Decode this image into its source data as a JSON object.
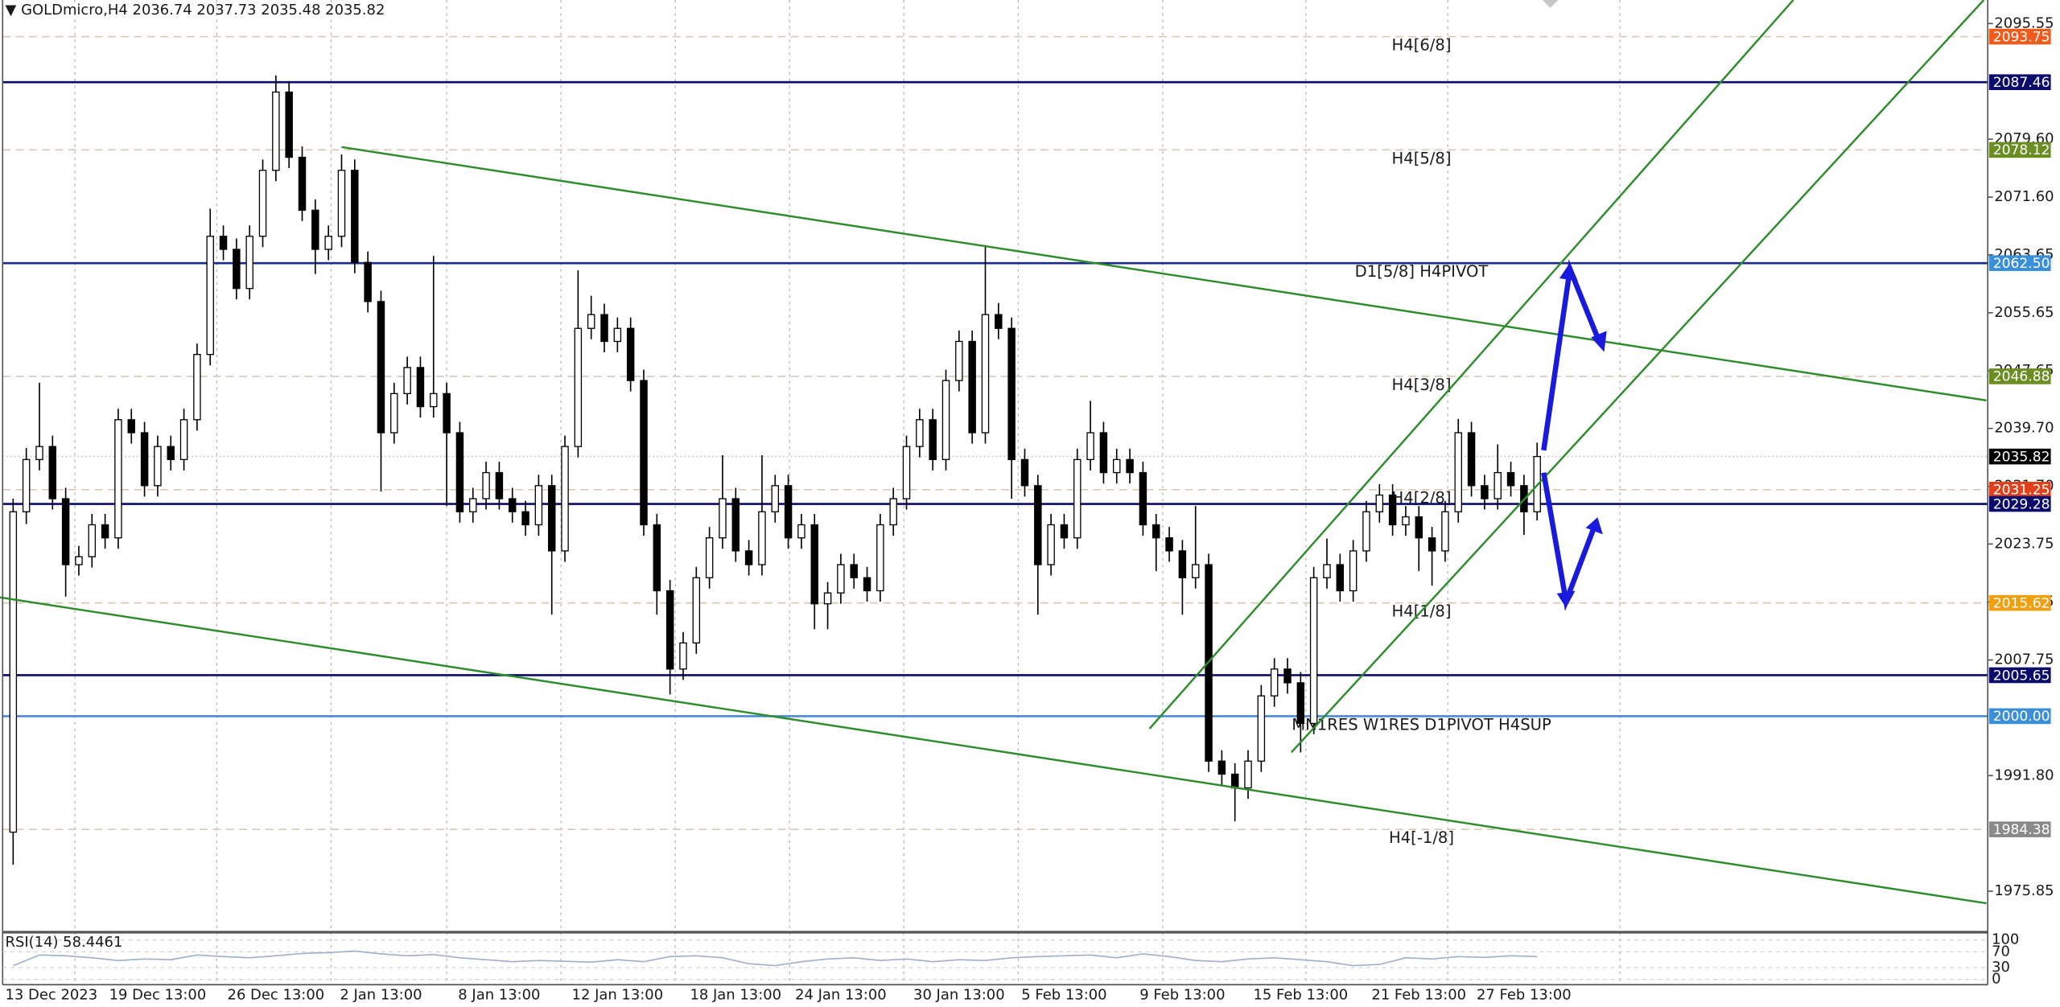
{
  "header": {
    "text": "GOLDmicro,H4  2036.74 2037.73 2035.48 2035.82"
  },
  "chart_data": {
    "type": "candlestick",
    "x": [
      "13 Dec 2023",
      null,
      null,
      null,
      null,
      null,
      null,
      null,
      null,
      null,
      null,
      "19 Dec 13:00",
      null,
      null,
      null,
      null,
      null,
      null,
      null,
      null,
      "26 Dec 13:00",
      null,
      null,
      null,
      null,
      null,
      null,
      null,
      "2 Jan 13:00",
      null,
      null,
      null,
      null,
      null,
      null,
      null,
      null,
      "8 Jan 13:00",
      null,
      null,
      null,
      null,
      null,
      null,
      null,
      null,
      "12 Jan 13:00",
      null,
      null,
      null,
      null,
      null,
      null,
      null,
      null,
      "18 Jan 13:00",
      null,
      null,
      null,
      null,
      null,
      null,
      null,
      "24 Jan 13:00",
      null,
      null,
      null,
      null,
      null,
      null,
      null,
      null,
      "30 Jan 13:00",
      null,
      null,
      null,
      null,
      null,
      null,
      null,
      "5 Feb 13:00",
      null,
      null,
      null,
      null,
      null,
      null,
      null,
      null,
      "9 Feb 13:00",
      null,
      null,
      null,
      null,
      null,
      null,
      null,
      null,
      "15 Feb 13:00",
      null,
      null,
      null,
      null,
      null,
      null,
      null,
      null,
      "21 Feb 13:00",
      null,
      null,
      null,
      null,
      null,
      null,
      null,
      "27 Feb 13:00",
      null
    ],
    "open": [
      1984.0,
      2028.2,
      2035.4,
      2037.2,
      2030.0,
      2020.9,
      2022.0,
      2026.4,
      2024.6,
      2040.9,
      2039.1,
      2031.8,
      2037.2,
      2035.4,
      2040.9,
      2049.9,
      2066.2,
      2064.4,
      2059.0,
      2066.2,
      2075.3,
      2086.1,
      2077.1,
      2069.8,
      2064.4,
      2066.2,
      2075.3,
      2062.6,
      2057.2,
      2039.1,
      2044.5,
      2048.1,
      2042.7,
      2044.5,
      2039.1,
      2028.2,
      2030.0,
      2033.6,
      2030.0,
      2028.2,
      2026.4,
      2031.8,
      2022.8,
      2037.2,
      2053.5,
      2055.4,
      2051.7,
      2053.5,
      2046.3,
      2026.4,
      2017.3,
      2006.5,
      2010.1,
      2019.1,
      2024.6,
      2030.0,
      2022.8,
      2020.9,
      2028.2,
      2031.8,
      2024.6,
      2026.4,
      2015.5,
      2017.0,
      2020.9,
      2019.1,
      2017.3,
      2026.4,
      2030.0,
      2037.2,
      2040.9,
      2035.4,
      2046.3,
      2051.7,
      2039.1,
      2055.4,
      2053.5,
      2035.4,
      2031.8,
      2020.9,
      2026.4,
      2024.6,
      2035.4,
      2039.1,
      2033.6,
      2035.4,
      2033.6,
      2026.4,
      2024.6,
      2022.8,
      2019.1,
      2020.9,
      1993.8,
      1992.0,
      1990.1,
      1993.8,
      2002.8,
      2006.5,
      2004.6,
      1999.0,
      2019.1,
      2020.9,
      2017.3,
      2022.8,
      2028.2,
      2030.5,
      2026.4,
      2027.5,
      2024.6,
      2022.8,
      2028.2,
      2039.1,
      2031.8,
      2030.0,
      2033.6,
      2031.8,
      2028.2
    ],
    "high": [
      2030.0,
      2037.0,
      2046.0,
      2038.7,
      2031.5,
      2023.5,
      2027.9,
      2027.9,
      2042.4,
      2042.4,
      2040.6,
      2038.7,
      2038.7,
      2042.4,
      2051.4,
      2070.0,
      2067.7,
      2065.9,
      2067.7,
      2076.8,
      2088.4,
      2087.6,
      2078.6,
      2071.3,
      2067.7,
      2077.5,
      2076.8,
      2064.1,
      2058.7,
      2046.0,
      2049.6,
      2049.6,
      2063.5,
      2046.0,
      2040.6,
      2031.5,
      2035.1,
      2035.1,
      2031.5,
      2029.7,
      2033.3,
      2033.3,
      2038.7,
      2061.5,
      2058.0,
      2056.9,
      2055.0,
      2055.0,
      2047.8,
      2027.9,
      2018.8,
      2011.6,
      2020.6,
      2026.1,
      2036.0,
      2031.5,
      2024.3,
      2036.0,
      2033.3,
      2033.3,
      2027.9,
      2027.9,
      2018.5,
      2022.4,
      2022.4,
      2020.6,
      2027.9,
      2031.5,
      2038.7,
      2042.4,
      2042.4,
      2047.8,
      2053.2,
      2053.2,
      2065.0,
      2057.0,
      2055.0,
      2036.9,
      2033.3,
      2027.9,
      2027.9,
      2036.9,
      2043.5,
      2040.6,
      2036.9,
      2036.9,
      2035.1,
      2027.9,
      2026.1,
      2024.3,
      2029.0,
      2022.4,
      1995.3,
      1993.5,
      1995.3,
      2004.3,
      2008.0,
      2008.0,
      2006.1,
      2020.6,
      2024.5,
      2022.4,
      2024.3,
      2029.7,
      2032.0,
      2032.0,
      2029.0,
      2029.0,
      2026.1,
      2029.7,
      2041.0,
      2040.6,
      2033.3,
      2037.5,
      2035.1,
      2033.3,
      2037.73
    ],
    "low": [
      1979.5,
      2026.5,
      2033.9,
      2028.5,
      2016.5,
      2019.4,
      2020.5,
      2023.1,
      2023.1,
      2037.6,
      2030.3,
      2030.3,
      2033.9,
      2033.9,
      2039.4,
      2048.4,
      2062.9,
      2057.5,
      2057.5,
      2064.7,
      2073.8,
      2075.6,
      2068.3,
      2061.0,
      2062.9,
      2064.7,
      2061.1,
      2055.7,
      2031.0,
      2037.6,
      2043.0,
      2041.2,
      2041.2,
      2029.0,
      2026.7,
      2026.7,
      2028.5,
      2028.5,
      2026.7,
      2024.9,
      2024.9,
      2014.0,
      2021.3,
      2035.7,
      2052.0,
      2050.2,
      2050.2,
      2044.8,
      2024.9,
      2014.0,
      2003.0,
      2005.0,
      2008.6,
      2017.6,
      2023.1,
      2021.3,
      2019.4,
      2019.4,
      2026.7,
      2023.1,
      2023.1,
      2012.0,
      2012.0,
      2015.5,
      2017.6,
      2015.8,
      2015.8,
      2024.9,
      2028.5,
      2035.7,
      2033.9,
      2033.9,
      2044.8,
      2037.6,
      2037.6,
      2052.0,
      2030.0,
      2030.3,
      2014.0,
      2019.4,
      2023.1,
      2023.1,
      2033.9,
      2032.1,
      2032.1,
      2032.1,
      2024.9,
      2020.0,
      2021.3,
      2014.0,
      2017.6,
      1992.3,
      1990.5,
      1985.5,
      1988.6,
      1992.3,
      2001.3,
      2003.1,
      1995.0,
      1997.5,
      2017.6,
      2015.8,
      2015.8,
      2021.3,
      2026.7,
      2024.9,
      2024.9,
      2020.0,
      2018.0,
      2021.3,
      2026.7,
      2030.3,
      2028.5,
      2028.5,
      2030.3,
      2025.0,
      2027.0
    ],
    "close": [
      2028.2,
      2035.4,
      2037.2,
      2030.0,
      2020.9,
      2022.0,
      2026.4,
      2024.6,
      2040.9,
      2039.1,
      2031.8,
      2037.2,
      2035.4,
      2040.9,
      2049.9,
      2066.2,
      2064.4,
      2059.0,
      2066.2,
      2075.3,
      2086.1,
      2077.1,
      2069.8,
      2064.4,
      2066.2,
      2075.3,
      2062.6,
      2057.2,
      2039.1,
      2044.5,
      2048.1,
      2042.7,
      2044.5,
      2039.1,
      2028.2,
      2030.0,
      2033.6,
      2030.0,
      2028.2,
      2026.4,
      2031.8,
      2022.8,
      2037.2,
      2053.5,
      2055.4,
      2051.7,
      2053.5,
      2046.3,
      2026.4,
      2017.3,
      2006.5,
      2010.1,
      2019.1,
      2024.6,
      2030.0,
      2022.8,
      2020.9,
      2028.2,
      2031.8,
      2024.6,
      2026.4,
      2015.5,
      2017.0,
      2020.9,
      2019.1,
      2017.3,
      2026.4,
      2030.0,
      2037.2,
      2040.9,
      2035.4,
      2046.3,
      2051.7,
      2039.1,
      2055.4,
      2053.5,
      2035.4,
      2031.8,
      2020.9,
      2026.4,
      2024.6,
      2035.4,
      2039.1,
      2033.6,
      2035.4,
      2033.6,
      2026.4,
      2024.6,
      2022.8,
      2019.1,
      2020.9,
      1993.8,
      1992.0,
      1990.1,
      1993.8,
      2002.8,
      2006.5,
      2004.6,
      1999.0,
      2019.1,
      2020.9,
      2017.3,
      2022.8,
      2028.2,
      2030.5,
      2026.4,
      2027.5,
      2024.6,
      2022.8,
      2028.2,
      2039.1,
      2031.8,
      2030.0,
      2033.6,
      2031.8,
      2028.2,
      2035.82
    ],
    "up_color": "#ffffff",
    "down_color": "#000000",
    "ylim": [
      1970.2,
      2098.8
    ],
    "yticks": [
      2095.55,
      {
        "value": 2079.6,
        "label": "2079.60"
      },
      {
        "value": 2071.6,
        "label": "2071.60"
      },
      2063.65,
      2055.65,
      2047.65,
      {
        "value": 2039.7,
        "label": "2039.70"
      },
      {
        "value": 2031.7,
        "label": "2031.70"
      },
      2023.75,
      2015.75,
      2007.75,
      {
        "value": 1991.8,
        "label": "1991.80"
      },
      1975.85
    ],
    "levels": [
      {
        "value": 2093.75,
        "color": "#f05a1a",
        "line_color": "#d9c9b3",
        "line": "dashed",
        "label": "H4[6/8]",
        "label_color": "#e8641a"
      },
      {
        "value": 2087.46,
        "color": "#0b0b6b",
        "line_color": "#0b0b6b",
        "line": "solid"
      },
      {
        "value": 2078.12,
        "color": "#6b8e23",
        "line_color": "#d9c9b3",
        "line": "dashed",
        "label": "H4[5/8]",
        "label_color": "#7a8a2a"
      },
      {
        "value": 2062.5,
        "tag": "2062.50",
        "color": "#3a8fd8",
        "line_color": "#1a2a8a",
        "line": "solid",
        "label": "D1[5/8] H4PIVOT",
        "label_color": "#3a8fd8"
      },
      {
        "value": 2046.88,
        "color": "#6b8e23",
        "line_color": "#d9c9b3",
        "line": "dashed",
        "label": "H4[3/8]",
        "label_color": "#7a8a2a"
      },
      {
        "value": 2035.82,
        "color": "#000000",
        "line_color": "#c0c0c0",
        "line": "dotted"
      },
      {
        "value": 2031.25,
        "color": "#e0401a",
        "line_color": "#d9c9b3",
        "line": "dashed",
        "label": "H4[2/8]",
        "label_color": "#e05a2a"
      },
      {
        "value": 2029.28,
        "color": "#0b0b6b",
        "line_color": "#0b0b6b",
        "line": "solid"
      },
      {
        "value": 2015.62,
        "color": "#f0a010",
        "line_color": "#d9c9b3",
        "line": "dashed",
        "label": "H4[1/8]",
        "label_color": "#f0a010"
      },
      {
        "value": 2005.65,
        "color": "#0b0b6b",
        "line_color": "#0b0b6b",
        "line": "solid"
      },
      {
        "value": 2000,
        "tag": "2000.00",
        "color": "#3a8fd8",
        "line_color": "#4a8ad8",
        "line": "solid",
        "label": "MN1RES W1RES D1PIVOT H4SUP",
        "label_color": "#3a8fd8"
      },
      {
        "value": 1984.38,
        "color": "#8a8a8a",
        "line_color": "#d9c9b3",
        "line": "dashed",
        "label": "H4[-1/8]",
        "label_color": "#8a8a8a"
      }
    ],
    "rsi": {
      "title": "RSI(14) 58.4461",
      "color": "#9fb0c8",
      "ylim": [
        0,
        100
      ],
      "yticks": [
        100,
        70,
        30,
        0
      ],
      "values": [
        35,
        62,
        60,
        55,
        48,
        52,
        50,
        62,
        58,
        55,
        60,
        66,
        68,
        72,
        65,
        60,
        63,
        55,
        50,
        45,
        48,
        46,
        44,
        50,
        45,
        58,
        60,
        55,
        40,
        35,
        45,
        52,
        55,
        48,
        52,
        45,
        50,
        48,
        55,
        58,
        60,
        62,
        55,
        65,
        58,
        48,
        45,
        52,
        55,
        50,
        45,
        35,
        38,
        55,
        52,
        58,
        56,
        60,
        58
      ]
    }
  }
}
